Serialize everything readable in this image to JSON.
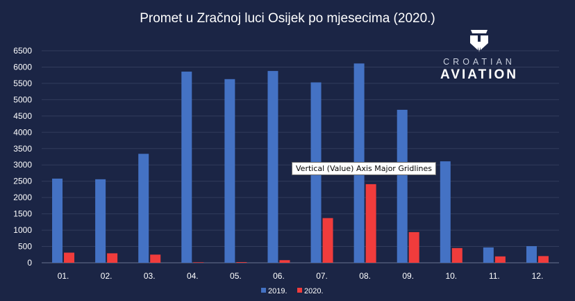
{
  "title": "Promet u Zračnoj luci Osijek po mjesecima (2020.)",
  "logo": {
    "line1": "CROATIAN",
    "line2": "AVIATION"
  },
  "tooltip": "Vertical (Value) Axis Major Gridlines",
  "chart_data": {
    "type": "bar",
    "title": "Promet u Zračnoj luci Osijek po mjesecima (2020.)",
    "categories": [
      "01.",
      "02.",
      "03.",
      "04.",
      "05.",
      "06.",
      "07.",
      "08.",
      "09.",
      "10.",
      "11.",
      "12."
    ],
    "series": [
      {
        "name": "2019.",
        "color": "#4472c4",
        "values": [
          2580,
          2560,
          3340,
          5860,
          5630,
          5880,
          5530,
          6110,
          4690,
          3110,
          470,
          510
        ]
      },
      {
        "name": "2020.",
        "color": "#f03c3c",
        "values": [
          310,
          290,
          250,
          15,
          20,
          80,
          1370,
          2410,
          940,
          450,
          195,
          205
        ]
      }
    ],
    "ylim": [
      0,
      6500
    ],
    "yticks": [
      0,
      500,
      1000,
      1500,
      2000,
      2500,
      3000,
      3500,
      4000,
      4500,
      5000,
      5500,
      6000,
      6500
    ],
    "grid": true,
    "legend": "bottom"
  }
}
